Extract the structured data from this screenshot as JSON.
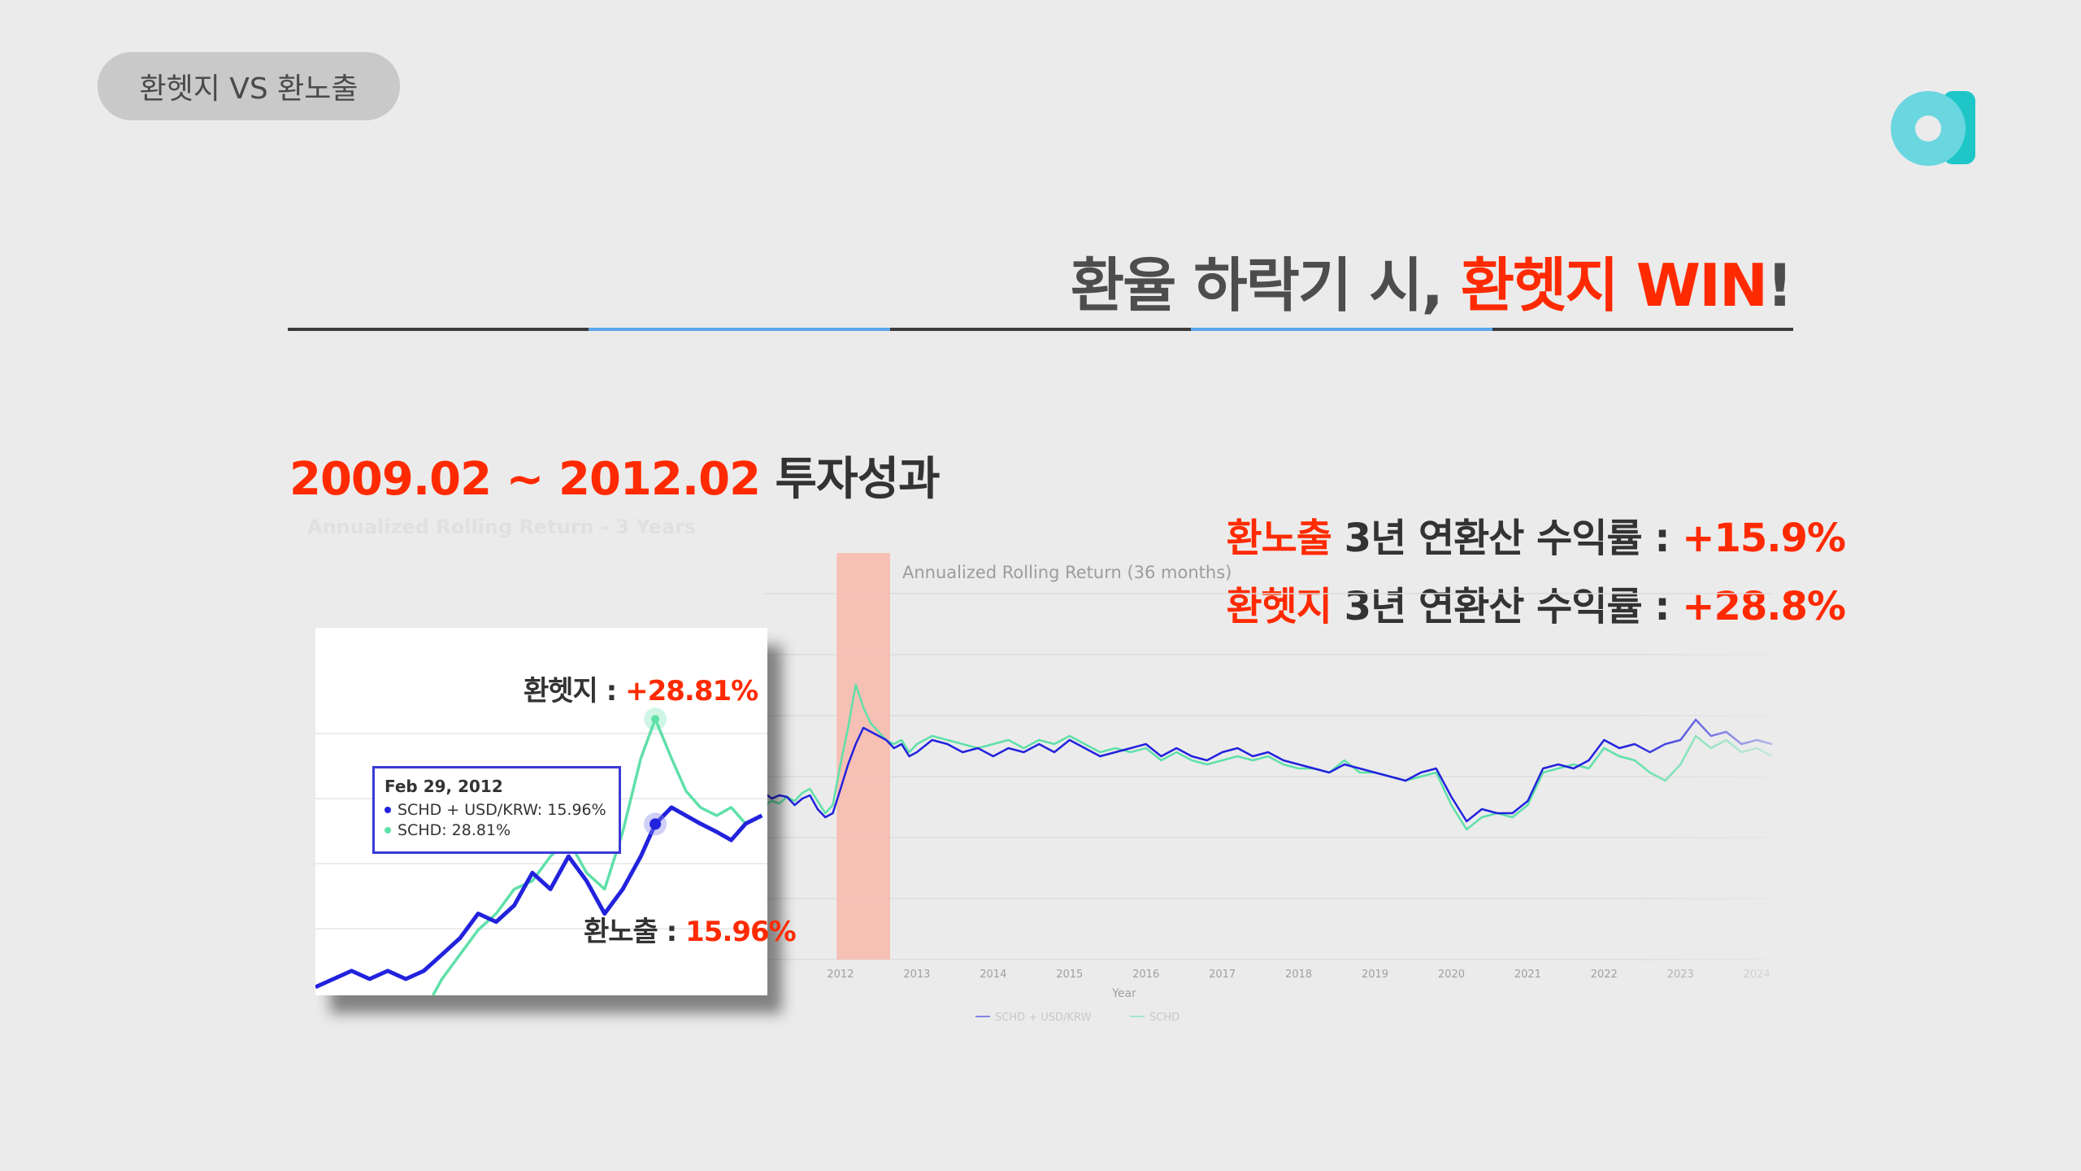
{
  "tag": "환헷지 VS 환노출",
  "headline": {
    "prefix": "환율 하락기 시, ",
    "highlight": "환헷지 WIN",
    "suffix": "!"
  },
  "period": {
    "range": "2009.02 ~ 2012.02",
    "label": " 투자성과"
  },
  "performance": [
    {
      "name": "환노출",
      "text": " 3년 연환산 수익률 : ",
      "value": "+15.9%"
    },
    {
      "name": "환헷지",
      "text": " 3년 연환산 수익률 : ",
      "value": "+28.8%"
    }
  ],
  "inset": {
    "hedge_label": "환헷지 : ",
    "hedge_value": "+28.81%",
    "exposed_label": "환노출 : ",
    "exposed_value": "15.96%",
    "tooltip": {
      "date": "Feb 29, 2012",
      "row1": "SCHD + USD/KRW: 15.96%",
      "row2": "SCHD: 28.81%"
    }
  },
  "colors": {
    "accent": "#ff2a00",
    "usd_krw": "#2222dd",
    "schd": "#5fe0a8",
    "highlight": "#f9b8ac"
  },
  "chart_data": {
    "type": "line",
    "title": "Annualized Rolling Return (36 months)",
    "faded_title": "Annualized Rolling Return - 3 Years",
    "xlabel": "Year",
    "x_ticks": [
      "2012",
      "2013",
      "2014",
      "2015",
      "2016",
      "2017",
      "2018",
      "2019",
      "2020",
      "2021",
      "2022",
      "2023",
      "2024"
    ],
    "x_range": [
      2011.0,
      2024.2
    ],
    "y_range": [
      -5,
      40
    ],
    "highlight_range": [
      2011.95,
      2012.65
    ],
    "legend": [
      "SCHD + USD/KRW",
      "SCHD"
    ],
    "legend_placement": "bottom",
    "series": [
      {
        "name": "SCHD + USD/KRW",
        "x": [
          2011.0,
          2011.1,
          2011.2,
          2011.3,
          2011.4,
          2011.5,
          2011.6,
          2011.7,
          2011.8,
          2011.9,
          2012.0,
          2012.1,
          2012.2,
          2012.3,
          2012.4,
          2012.5,
          2012.6,
          2012.7,
          2012.8,
          2012.9,
          2013.0,
          2013.2,
          2013.4,
          2013.6,
          2013.8,
          2014.0,
          2014.2,
          2014.4,
          2014.6,
          2014.8,
          2015.0,
          2015.2,
          2015.4,
          2015.6,
          2015.8,
          2016.0,
          2016.2,
          2016.4,
          2016.6,
          2016.8,
          2017.0,
          2017.2,
          2017.4,
          2017.6,
          2017.8,
          2018.0,
          2018.2,
          2018.4,
          2018.6,
          2018.8,
          2019.0,
          2019.2,
          2019.4,
          2019.6,
          2019.8,
          2020.0,
          2020.2,
          2020.4,
          2020.6,
          2020.8,
          2021.0,
          2021.2,
          2021.4,
          2021.6,
          2021.8,
          2022.0,
          2022.2,
          2022.4,
          2022.6,
          2022.8,
          2023.0,
          2023.2,
          2023.4,
          2023.6,
          2023.8,
          2024.0,
          2024.2
        ],
        "y": [
          15.5,
          14.8,
          15.2,
          15.0,
          14.0,
          14.8,
          15.2,
          13.5,
          12.5,
          13.0,
          15.96,
          19.0,
          21.5,
          23.5,
          23.0,
          22.5,
          22.0,
          21.0,
          21.5,
          20.0,
          20.5,
          22.0,
          21.5,
          20.5,
          21.0,
          20.0,
          21.0,
          20.5,
          21.5,
          20.5,
          22.0,
          21.0,
          20.0,
          20.5,
          21.0,
          21.5,
          20.0,
          21.0,
          20.0,
          19.5,
          20.5,
          21.0,
          20.0,
          20.5,
          19.5,
          19.0,
          18.5,
          18.0,
          19.0,
          18.5,
          18.0,
          17.5,
          17.0,
          18.0,
          18.5,
          15.0,
          12.0,
          13.5,
          13.0,
          13.0,
          14.5,
          18.5,
          19.0,
          18.5,
          19.5,
          22.0,
          21.0,
          21.5,
          20.5,
          21.5,
          22.0,
          24.5,
          22.5,
          23.0,
          21.5,
          22.0,
          21.5
        ]
      },
      {
        "name": "SCHD",
        "x": [
          2011.0,
          2011.1,
          2011.2,
          2011.3,
          2011.4,
          2011.5,
          2011.6,
          2011.7,
          2011.8,
          2011.9,
          2012.0,
          2012.1,
          2012.2,
          2012.3,
          2012.4,
          2012.5,
          2012.6,
          2012.7,
          2012.8,
          2012.9,
          2013.0,
          2013.2,
          2013.4,
          2013.6,
          2013.8,
          2014.0,
          2014.2,
          2014.4,
          2014.6,
          2014.8,
          2015.0,
          2015.2,
          2015.4,
          2015.6,
          2015.8,
          2016.0,
          2016.2,
          2016.4,
          2016.6,
          2016.8,
          2017.0,
          2017.2,
          2017.4,
          2017.6,
          2017.8,
          2018.0,
          2018.2,
          2018.4,
          2018.6,
          2018.8,
          2019.0,
          2019.2,
          2019.4,
          2019.6,
          2019.8,
          2020.0,
          2020.2,
          2020.4,
          2020.6,
          2020.8,
          2021.0,
          2021.2,
          2021.4,
          2021.6,
          2021.8,
          2022.0,
          2022.2,
          2022.4,
          2022.6,
          2022.8,
          2023.0,
          2023.2,
          2023.4,
          2023.6,
          2023.8,
          2024.0,
          2024.2
        ],
        "y": [
          14.0,
          14.5,
          14.2,
          15.0,
          14.5,
          15.5,
          16.0,
          14.5,
          13.0,
          14.0,
          19.0,
          23.5,
          28.81,
          26.0,
          24.0,
          23.0,
          22.0,
          21.5,
          22.0,
          20.5,
          21.5,
          22.5,
          22.0,
          21.5,
          21.0,
          21.5,
          22.0,
          21.0,
          22.0,
          21.5,
          22.5,
          21.5,
          20.5,
          21.0,
          20.5,
          21.0,
          19.5,
          20.5,
          19.5,
          19.0,
          19.5,
          20.0,
          19.5,
          20.0,
          19.0,
          18.5,
          18.5,
          18.0,
          19.5,
          18.0,
          18.0,
          17.5,
          17.0,
          17.5,
          18.0,
          14.0,
          11.0,
          12.5,
          13.0,
          12.5,
          14.0,
          18.0,
          18.5,
          19.0,
          18.5,
          21.0,
          20.0,
          19.5,
          18.0,
          17.0,
          19.0,
          22.5,
          21.0,
          22.0,
          20.5,
          21.0,
          20.0
        ]
      }
    ]
  },
  "inset_chart_data": {
    "type": "line",
    "x_range": [
      2010.2,
      2012.7
    ],
    "y_range": [
      -5,
      35
    ],
    "series": [
      {
        "name": "SCHD + USD/KRW",
        "x": [
          2010.2,
          2010.3,
          2010.4,
          2010.5,
          2010.6,
          2010.7,
          2010.8,
          2010.9,
          2011.0,
          2011.1,
          2011.2,
          2011.3,
          2011.4,
          2011.5,
          2011.6,
          2011.7,
          2011.8,
          2011.9,
          2012.0,
          2012.08,
          2012.17,
          2012.25,
          2012.33,
          2012.42,
          2012.5,
          2012.58,
          2012.67
        ],
        "y": [
          -4,
          -3,
          -2,
          -3,
          -2,
          -3,
          -2,
          0,
          2,
          5,
          4,
          6,
          10,
          8,
          12,
          9,
          5,
          8,
          12,
          15.96,
          18,
          17,
          16,
          15,
          14,
          16,
          17
        ]
      },
      {
        "name": "SCHD",
        "x": [
          2010.85,
          2010.9,
          2011.0,
          2011.1,
          2011.2,
          2011.3,
          2011.4,
          2011.5,
          2011.6,
          2011.7,
          2011.8,
          2011.9,
          2012.0,
          2012.08,
          2012.17,
          2012.25,
          2012.33,
          2012.42,
          2012.5,
          2012.58,
          2012.67
        ],
        "y": [
          -5,
          -3,
          0,
          3,
          5,
          8,
          9,
          12,
          14,
          10,
          8,
          15,
          24,
          28.81,
          24,
          20,
          18,
          17,
          18,
          16,
          17
        ]
      }
    ]
  }
}
